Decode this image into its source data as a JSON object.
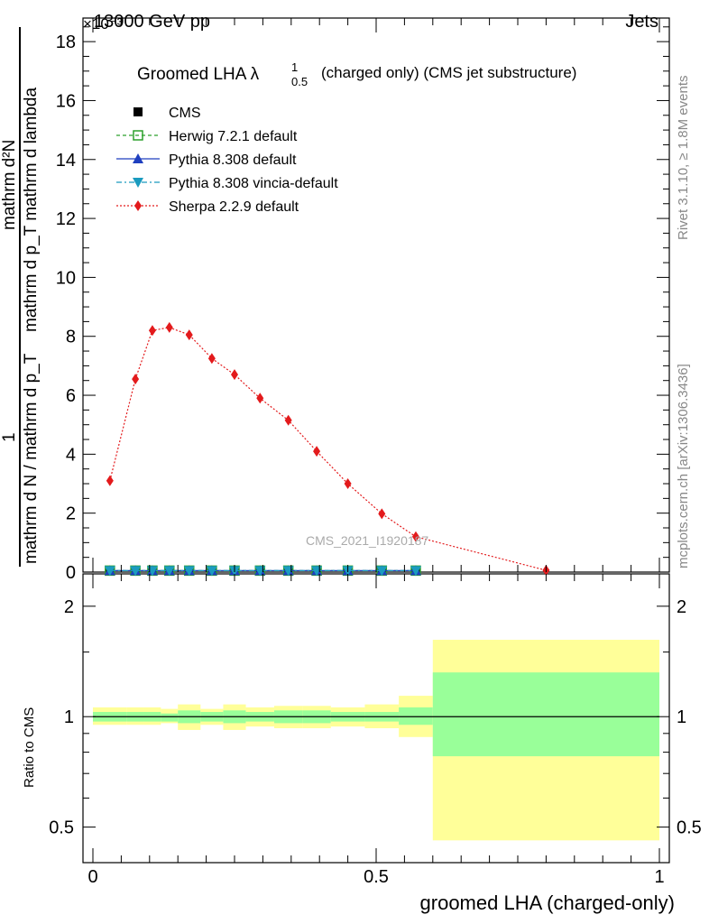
{
  "header": {
    "left": "13000 GeV pp",
    "right": "Jets"
  },
  "side_labels": {
    "rivet": "Rivet 3.1.10, ≥ 1.8M events",
    "mcplots": "mcplots.cern.ch [arXiv:1306.3436]"
  },
  "watermark": "CMS_2021_I1920187",
  "colors": {
    "cms": "#000000",
    "herwig": "#2ca02c",
    "pythia": "#1f3fbf",
    "vincia": "#1a9bbf",
    "sherpa": "#e31a1c",
    "band_inner": "#99ff99",
    "band_outer": "#ffff99"
  },
  "chart_data": [
    {
      "type": "line",
      "title": "Groomed LHA λ",
      "title_sup": "1",
      "title_sub": "0.5",
      "title_suffix": "(charged only) (CMS jet substructure)",
      "ylabel_numerator": "mathrm d²N",
      "ylabel_denominator": "mathrm d p_T mathrm d lambda",
      "ylabel_prefactor_num": "1",
      "ylabel_prefactor_den": "mathrm d N / mathrm d p_T",
      "ylabel_line1": "1                    mathrm d²N",
      "ylabel_raw": "(1 / (mathrm d N / mathrm d p_T)) · mathrm d²N / (mathrm d p_T mathrm d lambda)",
      "y_multiplier": "×10⁻³",
      "xlim": [
        0,
        1
      ],
      "ylim": [
        0,
        18.8
      ],
      "y_ticks": [
        0,
        2,
        4,
        6,
        8,
        10,
        12,
        14,
        16,
        18
      ],
      "y_tick_labels": [
        "0",
        "2",
        "4",
        "6",
        "8",
        "10",
        "12",
        "14",
        "16",
        "18"
      ],
      "legend": [
        {
          "name": "CMS",
          "style": "square-filled"
        },
        {
          "name": "Herwig 7.2.1 default",
          "style": "square-open-dashed"
        },
        {
          "name": "Pythia 8.308 default",
          "style": "triangle-up-solid"
        },
        {
          "name": "Pythia 8.308 vincia-default",
          "style": "triangle-down-dashdot"
        },
        {
          "name": "Sherpa 2.2.9 default",
          "style": "diamond-dotted"
        }
      ],
      "bin_edges": [
        0,
        0.06,
        0.09,
        0.12,
        0.15,
        0.19,
        0.23,
        0.27,
        0.32,
        0.37,
        0.42,
        0.48,
        0.54,
        0.6,
        1.0
      ],
      "series": [
        {
          "name": "CMS",
          "x": [
            0.03,
            0.075,
            0.105,
            0.135,
            0.17,
            0.21,
            0.25,
            0.295,
            0.345,
            0.395,
            0.45,
            0.51,
            0.57
          ],
          "values": [
            0.05,
            0.05,
            0.05,
            0.05,
            0.05,
            0.05,
            0.05,
            0.05,
            0.05,
            0.05,
            0.05,
            0.05,
            0.05
          ]
        },
        {
          "name": "Herwig 7.2.1 default",
          "x": [
            0.03,
            0.075,
            0.105,
            0.135,
            0.17,
            0.21,
            0.25,
            0.295,
            0.345,
            0.395,
            0.45,
            0.51,
            0.57
          ],
          "values": [
            0.05,
            0.05,
            0.05,
            0.05,
            0.05,
            0.05,
            0.05,
            0.05,
            0.05,
            0.05,
            0.05,
            0.05,
            0.05
          ]
        },
        {
          "name": "Pythia 8.308 default",
          "x": [
            0.03,
            0.075,
            0.105,
            0.135,
            0.17,
            0.21,
            0.25,
            0.295,
            0.345,
            0.395,
            0.45,
            0.51,
            0.57
          ],
          "values": [
            0.05,
            0.05,
            0.05,
            0.05,
            0.05,
            0.05,
            0.05,
            0.05,
            0.05,
            0.05,
            0.05,
            0.05,
            0.05
          ]
        },
        {
          "name": "Pythia 8.308 vincia-default",
          "x": [
            0.03,
            0.075,
            0.105,
            0.135,
            0.17,
            0.21,
            0.25,
            0.295,
            0.345,
            0.395,
            0.45,
            0.51,
            0.57
          ],
          "values": [
            0.05,
            0.05,
            0.05,
            0.05,
            0.05,
            0.05,
            0.05,
            0.05,
            0.05,
            0.05,
            0.05,
            0.05,
            0.05
          ]
        },
        {
          "name": "Sherpa 2.2.9 default",
          "x": [
            0.03,
            0.075,
            0.105,
            0.135,
            0.17,
            0.21,
            0.25,
            0.295,
            0.345,
            0.395,
            0.45,
            0.51,
            0.57,
            0.8
          ],
          "values": [
            3.1,
            6.55,
            8.2,
            8.3,
            8.05,
            7.25,
            6.7,
            5.9,
            5.15,
            4.1,
            3.0,
            1.98,
            1.2,
            0.06
          ]
        }
      ]
    },
    {
      "type": "area",
      "ylabel": "Ratio to CMS",
      "xlabel": "groomed LHA (charged-only)",
      "scale": "log",
      "ylim": [
        0.4,
        2.45
      ],
      "y_ticks": [
        0.5,
        1,
        2
      ],
      "y_tick_labels": [
        "0.5",
        "1",
        "2"
      ],
      "x_ticks": [
        0,
        0.5,
        1
      ],
      "x_tick_labels": [
        "0",
        "0.5",
        "1"
      ],
      "bins": [
        {
          "x0": 0.0,
          "x1": 0.06,
          "inner": [
            0.97,
            1.03
          ],
          "outer": [
            0.95,
            1.06
          ]
        },
        {
          "x0": 0.06,
          "x1": 0.09,
          "inner": [
            0.97,
            1.03
          ],
          "outer": [
            0.95,
            1.06
          ]
        },
        {
          "x0": 0.09,
          "x1": 0.12,
          "inner": [
            0.97,
            1.03
          ],
          "outer": [
            0.95,
            1.06
          ]
        },
        {
          "x0": 0.12,
          "x1": 0.15,
          "inner": [
            0.97,
            1.02
          ],
          "outer": [
            0.96,
            1.05
          ]
        },
        {
          "x0": 0.15,
          "x1": 0.19,
          "inner": [
            0.96,
            1.04
          ],
          "outer": [
            0.92,
            1.08
          ]
        },
        {
          "x0": 0.19,
          "x1": 0.23,
          "inner": [
            0.97,
            1.03
          ],
          "outer": [
            0.95,
            1.05
          ]
        },
        {
          "x0": 0.23,
          "x1": 0.27,
          "inner": [
            0.96,
            1.04
          ],
          "outer": [
            0.92,
            1.08
          ]
        },
        {
          "x0": 0.27,
          "x1": 0.32,
          "inner": [
            0.97,
            1.03
          ],
          "outer": [
            0.94,
            1.06
          ]
        },
        {
          "x0": 0.32,
          "x1": 0.37,
          "inner": [
            0.96,
            1.04
          ],
          "outer": [
            0.93,
            1.07
          ]
        },
        {
          "x0": 0.37,
          "x1": 0.42,
          "inner": [
            0.96,
            1.04
          ],
          "outer": [
            0.93,
            1.07
          ]
        },
        {
          "x0": 0.42,
          "x1": 0.48,
          "inner": [
            0.97,
            1.03
          ],
          "outer": [
            0.94,
            1.06
          ]
        },
        {
          "x0": 0.48,
          "x1": 0.54,
          "inner": [
            0.97,
            1.03
          ],
          "outer": [
            0.93,
            1.08
          ]
        },
        {
          "x0": 0.54,
          "x1": 0.6,
          "inner": [
            0.95,
            1.06
          ],
          "outer": [
            0.88,
            1.14
          ]
        },
        {
          "x0": 0.6,
          "x1": 1.0,
          "inner": [
            0.78,
            1.32
          ],
          "outer": [
            0.46,
            1.62
          ]
        }
      ]
    }
  ]
}
